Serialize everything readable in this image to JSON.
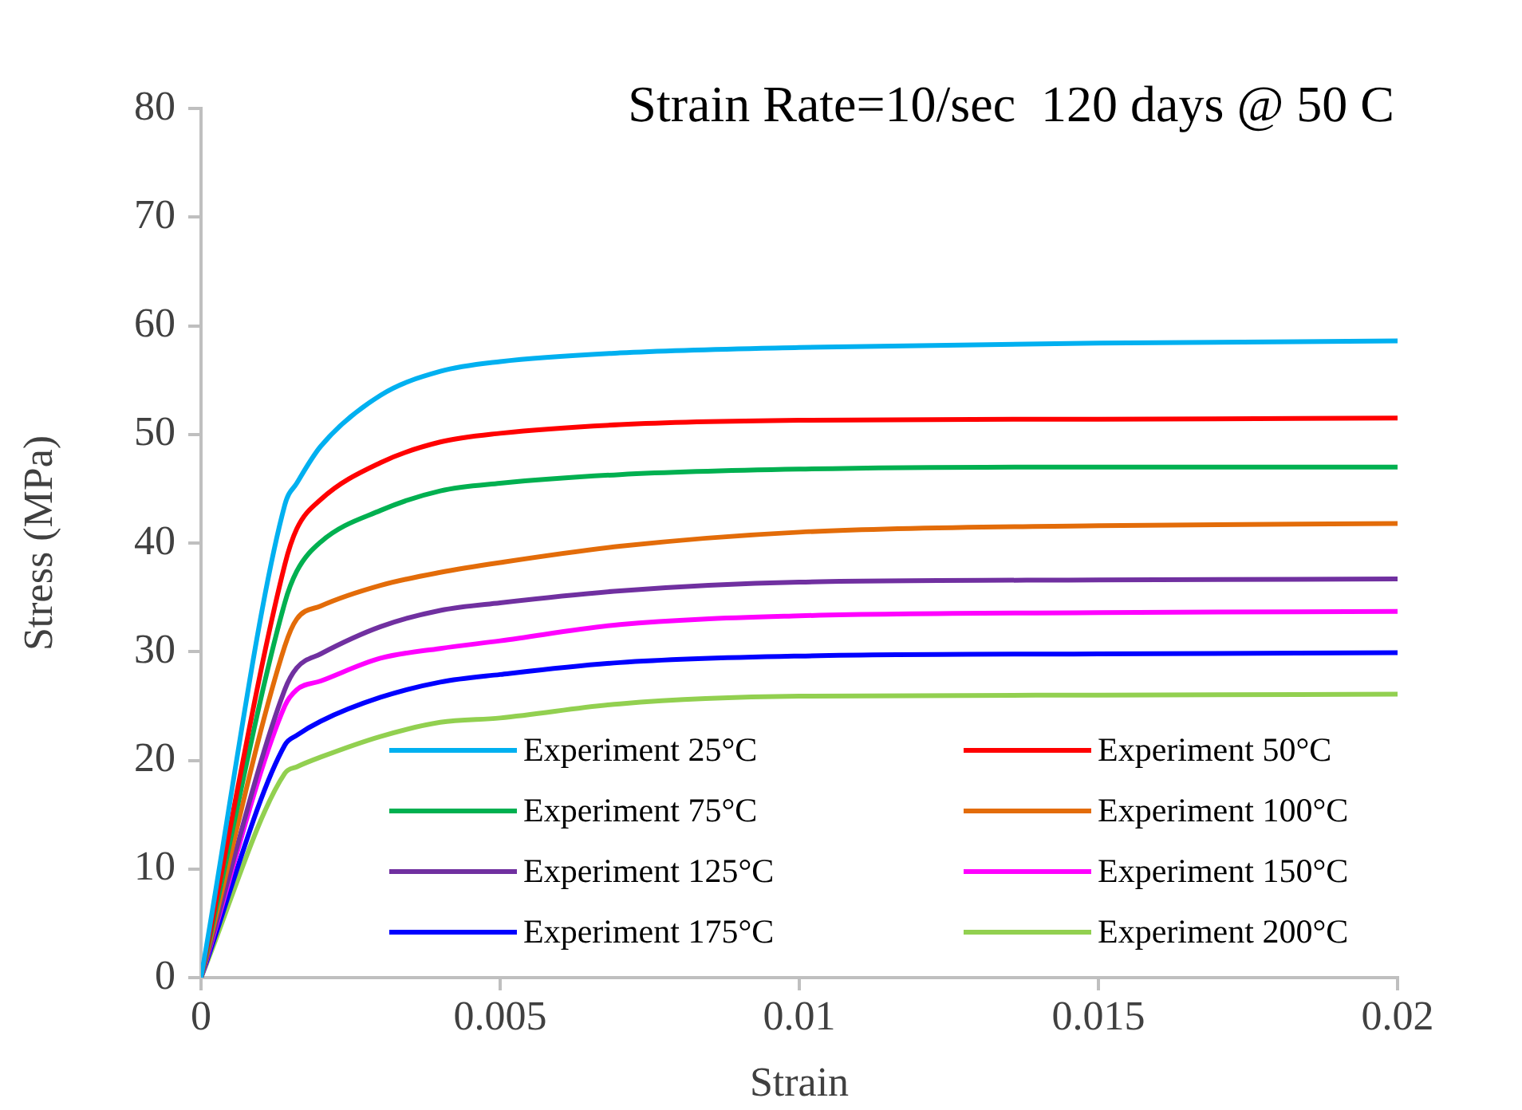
{
  "chart_data": {
    "type": "line",
    "title": "Strain Rate=10/sec  120 days @ 50 C",
    "xlabel": "Strain",
    "ylabel": "Stress (MPa)",
    "x": [
      0,
      0.0014,
      0.0016,
      0.002,
      0.003,
      0.004,
      0.005,
      0.007,
      0.01,
      0.015,
      0.02
    ],
    "xlim": [
      0,
      0.02
    ],
    "xticks": [
      0,
      0.005,
      0.01,
      0.015,
      0.02
    ],
    "ylim": [
      0,
      80
    ],
    "yticks": [
      0,
      10,
      20,
      30,
      40,
      50,
      60,
      70,
      80
    ],
    "grid": false,
    "legend": "bottom right",
    "marker": "none",
    "line_style": "solid",
    "series": [
      {
        "name": "Experiment 25°C",
        "color": "#00b0f0",
        "values": [
          0,
          43.5,
          45.5,
          48.9,
          53.6,
          55.8,
          56.7,
          57.5,
          58,
          58.4,
          58.6
        ]
      },
      {
        "name": "Experiment 50°C",
        "color": "#ff0000",
        "values": [
          0,
          38,
          41.3,
          44,
          47.4,
          49.3,
          50.1,
          50.9,
          51.3,
          51.4,
          51.5
        ]
      },
      {
        "name": "Experiment 75°C",
        "color": "#00b050",
        "values": [
          0,
          34.5,
          37.4,
          40.1,
          43,
          44.8,
          45.5,
          46.3,
          46.8,
          47,
          47
        ]
      },
      {
        "name": "Experiment 100°C",
        "color": "#e36c09",
        "values": [
          0,
          30.5,
          33,
          34.2,
          36.1,
          37.3,
          38.2,
          39.7,
          41,
          41.6,
          41.8
        ]
      },
      {
        "name": "Experiment 125°C",
        "color": "#7030a0",
        "values": [
          0,
          26.5,
          28.5,
          29.8,
          32.3,
          33.8,
          34.5,
          35.6,
          36.4,
          36.6,
          36.7
        ]
      },
      {
        "name": "Experiment 150°C",
        "color": "#ff00ff",
        "values": [
          0,
          25,
          26.5,
          27.3,
          29.4,
          30.3,
          31,
          32.5,
          33.3,
          33.6,
          33.7
        ]
      },
      {
        "name": "Experiment 175°C",
        "color": "#0000ff",
        "values": [
          0,
          21.4,
          22.3,
          23.6,
          25.8,
          27.2,
          27.9,
          29,
          29.6,
          29.8,
          29.9
        ]
      },
      {
        "name": "Experiment 200°C",
        "color": "#92d050",
        "values": [
          0,
          18.8,
          19.4,
          20.3,
          22.2,
          23.5,
          23.9,
          25.2,
          25.9,
          26,
          26.1
        ]
      }
    ]
  }
}
